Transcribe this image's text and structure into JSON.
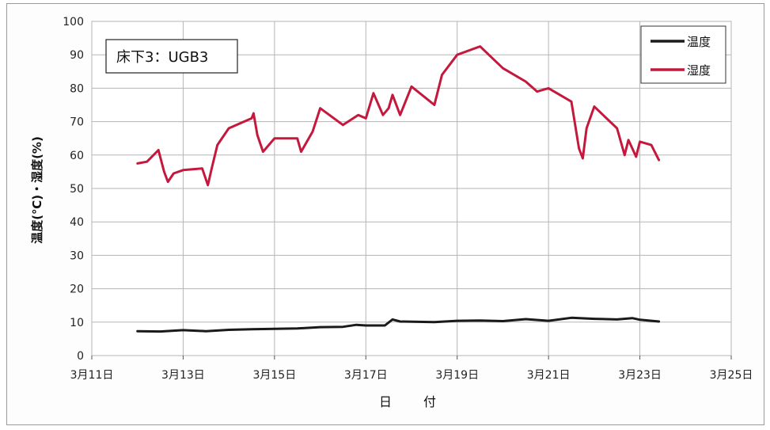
{
  "chart_data": {
    "type": "line",
    "title": "床下3：UGB3",
    "xlabel": "日　付",
    "ylabel": "温度(℃)・湿度(%)",
    "ylim": [
      0,
      100
    ],
    "yticks": [
      0,
      10,
      20,
      30,
      40,
      50,
      60,
      70,
      80,
      90,
      100
    ],
    "xlim": [
      "3月11日",
      "3月25日"
    ],
    "xticks": [
      "3月11日",
      "3月13日",
      "3月15日",
      "3月17日",
      "3月19日",
      "3月21日",
      "3月23日",
      "3月25日"
    ],
    "grid": true,
    "legend_position": "top-right",
    "series": [
      {
        "name": "温度",
        "color": "#1a1a1a",
        "points": [
          [
            "3月12日 00:00",
            7.3
          ],
          [
            "3月12日 12:00",
            7.2
          ],
          [
            "3月13日 00:00",
            7.6
          ],
          [
            "3月13日 12:00",
            7.3
          ],
          [
            "3月14日 00:00",
            7.7
          ],
          [
            "3月14日 12:00",
            7.9
          ],
          [
            "3月15日 00:00",
            8.0
          ],
          [
            "3月15日 12:00",
            8.1
          ],
          [
            "3月16日 00:00",
            8.5
          ],
          [
            "3月16日 12:00",
            8.6
          ],
          [
            "3月16日 19:00",
            9.2
          ],
          [
            "3月17日 00:00",
            9.0
          ],
          [
            "3月17日 10:00",
            9.0
          ],
          [
            "3月17日 14:00",
            10.8
          ],
          [
            "3月17日 18:00",
            10.2
          ],
          [
            "3月18日 12:00",
            10.0
          ],
          [
            "3月19日 00:00",
            10.4
          ],
          [
            "3月19日 12:00",
            10.5
          ],
          [
            "3月20日 00:00",
            10.3
          ],
          [
            "3月20日 12:00",
            10.9
          ],
          [
            "3月21日 00:00",
            10.4
          ],
          [
            "3月21日 12:00",
            11.3
          ],
          [
            "3月22日 00:00",
            11.0
          ],
          [
            "3月22日 12:00",
            10.8
          ],
          [
            "3月22日 20:00",
            11.2
          ],
          [
            "3月23日 00:00",
            10.7
          ],
          [
            "3月23日 10:00",
            10.2
          ]
        ]
      },
      {
        "name": "湿度",
        "color": "#c4183c",
        "points": [
          [
            "3月12日 00:00",
            57.5
          ],
          [
            "3月12日 05:00",
            58
          ],
          [
            "3月12日 11:00",
            61.5
          ],
          [
            "3月12日 14:00",
            55
          ],
          [
            "3月12日 16:00",
            52
          ],
          [
            "3月12日 19:00",
            54.5
          ],
          [
            "3月13日 00:00",
            55.5
          ],
          [
            "3月13日 10:00",
            56
          ],
          [
            "3月13日 13:00",
            51
          ],
          [
            "3月13日 15:00",
            56
          ],
          [
            "3月13日 18:00",
            63
          ],
          [
            "3月14日 00:00",
            68
          ],
          [
            "3月14日 12:00",
            71
          ],
          [
            "3月14日 13:00",
            72.5
          ],
          [
            "3月14日 15:00",
            66
          ],
          [
            "3月14. 18:00",
            61
          ],
          [
            "3月15日 00:00",
            65
          ],
          [
            "3月15日 12:00",
            65
          ],
          [
            "3月15日 14:00",
            61
          ],
          [
            "3月15日 20:00",
            67
          ],
          [
            "3月16日 00:00",
            74
          ],
          [
            "3月16日 12:00",
            69
          ],
          [
            "3月16日 20:00",
            72
          ],
          [
            "3月17日 00:00",
            71
          ],
          [
            "3月17日 04:00",
            78.5
          ],
          [
            "3月17日 09:00",
            72
          ],
          [
            "3月17日 12:00",
            74
          ],
          [
            "3月17日 14:00",
            78
          ],
          [
            "3月17日 18:00",
            72
          ],
          [
            "3月18日 00:00",
            80.5
          ],
          [
            "3月18日 12:00",
            75
          ],
          [
            "3月18日 16:00",
            84
          ],
          [
            "3月19日 00:00",
            90
          ],
          [
            "3月19日 12:00",
            92.5
          ],
          [
            "3月20日 00:00",
            86
          ],
          [
            "3月20日 12:00",
            82
          ],
          [
            "3月20日 18:00",
            79
          ],
          [
            "3月21日 00:00",
            80
          ],
          [
            "3月21日 12:00",
            76
          ],
          [
            "3月21日 16:00",
            62
          ],
          [
            "3月21日 18:00",
            59
          ],
          [
            "3月21日 20:00",
            68
          ],
          [
            "3月22日 00:00",
            74.5
          ],
          [
            "3月22日 12:00",
            68
          ],
          [
            "3月22日 16:00",
            60
          ],
          [
            "3月22日 18:00",
            64.5
          ],
          [
            "3月22日 22:00",
            59.5
          ],
          [
            "3月23日 00:00",
            64
          ],
          [
            "3月23日 06:00",
            63
          ],
          [
            "3月23日 10:00",
            58.5
          ]
        ]
      }
    ]
  }
}
